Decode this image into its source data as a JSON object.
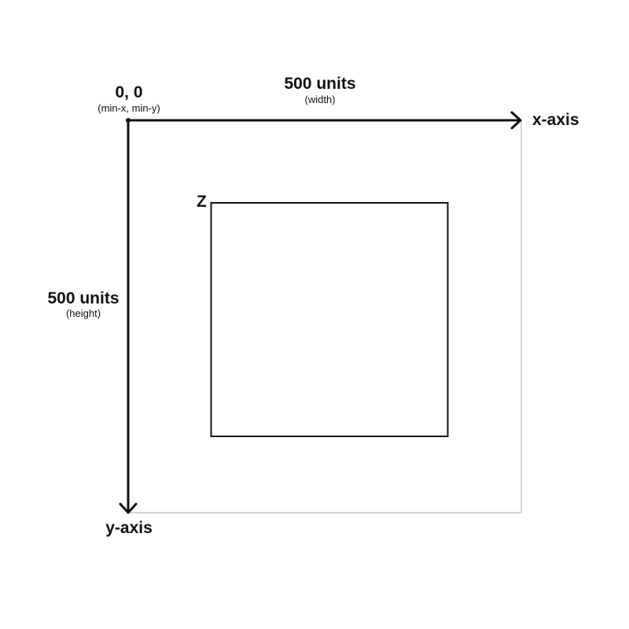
{
  "origin": {
    "label": "0, 0",
    "sub_label": "(min-x, min-y)"
  },
  "width_dimension": {
    "label": "500 units",
    "sub_label": "(width)"
  },
  "height_dimension": {
    "label": "500 units",
    "sub_label": "(height)"
  },
  "x_axis": {
    "label": "x-axis"
  },
  "y_axis": {
    "label": "y-axis"
  },
  "shape": {
    "label": "Z"
  },
  "colors": {
    "axis": "#111111",
    "canvas_border": "#bdbdbd",
    "shape_stroke": "#111111",
    "background": "#ffffff"
  }
}
